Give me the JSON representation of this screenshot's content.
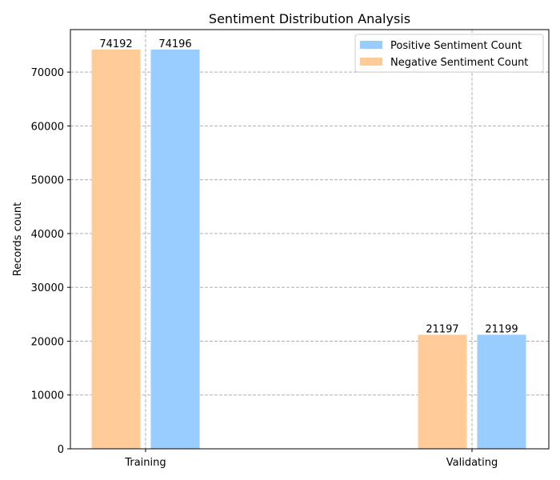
{
  "chart_data": {
    "type": "bar",
    "title": "Sentiment Distribution Analysis",
    "xlabel": "",
    "ylabel": "Records count",
    "categories": [
      "Training",
      "Validating"
    ],
    "series": [
      {
        "name": "Negative Sentiment Count",
        "values": [
          74192,
          21197
        ],
        "color": "#ffcc99"
      },
      {
        "name": "Positive Sentiment Count",
        "values": [
          74196,
          21199
        ],
        "color": "#99ccff"
      }
    ],
    "legend_order": [
      "Positive Sentiment Count",
      "Negative Sentiment Count"
    ],
    "ylim": [
      0,
      77898
    ],
    "yticks": [
      0,
      10000,
      20000,
      30000,
      40000,
      50000,
      60000,
      70000
    ],
    "grid": true,
    "grid_style": "dashed",
    "legend_position": "top-right",
    "data_labels": true
  }
}
